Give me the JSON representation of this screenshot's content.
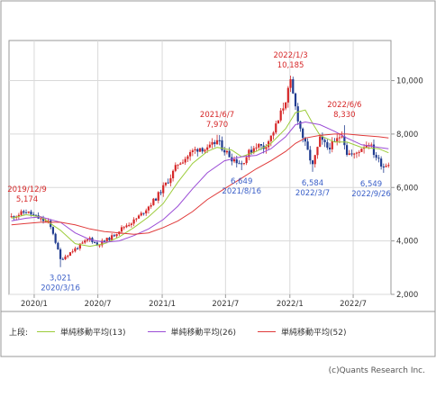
{
  "chart_data": {
    "type": "candlestick",
    "x_ticks": [
      "2020/1",
      "2020/7",
      "2021/1",
      "2021/7",
      "2022/1",
      "2022/7"
    ],
    "y_ticks": [
      "2,000",
      "4,000",
      "6,000",
      "8,000",
      "10,000"
    ],
    "ylim": [
      2000,
      11500
    ],
    "grid": true,
    "colors": {
      "up": "#d62728",
      "down": "#1f3b8f",
      "annotation_high": "#d62728",
      "annotation_low": "#3a5fc8"
    },
    "annotations": [
      {
        "date": "2019/12/9",
        "value": 5174,
        "date_label": "2019/12/9",
        "value_label": "5,174",
        "kind": "high"
      },
      {
        "date": "2020/3/16",
        "value": 3021,
        "date_label": "2020/3/16",
        "value_label": "3,021",
        "kind": "low"
      },
      {
        "date": "2021/6/7",
        "value": 7970,
        "date_label": "2021/6/7",
        "value_label": "7,970",
        "kind": "high"
      },
      {
        "date": "2021/8/16",
        "value": 6649,
        "date_label": "2021/8/16",
        "value_label": "6,649",
        "kind": "low"
      },
      {
        "date": "2022/1/3",
        "value": 10185,
        "date_label": "2022/1/3",
        "value_label": "10,185",
        "kind": "high"
      },
      {
        "date": "2022/3/7",
        "value": 6584,
        "date_label": "2022/3/7",
        "value_label": "6,584",
        "kind": "low"
      },
      {
        "date": "2022/6/6",
        "value": 8330,
        "date_label": "2022/6/6",
        "value_label": "8,330",
        "kind": "high"
      },
      {
        "date": "2022/9/26",
        "value": 6549,
        "date_label": "2022/9/26",
        "value_label": "6,549",
        "kind": "low"
      }
    ],
    "close_path": [
      [
        "2019/10/28",
        4900
      ],
      [
        "2019/11/18",
        5000
      ],
      [
        "2019/12/9",
        5100
      ],
      [
        "2019/12/30",
        4950
      ],
      [
        "2020/1/20",
        4800
      ],
      [
        "2020/2/10",
        4700
      ],
      [
        "2020/2/24",
        4300
      ],
      [
        "2020/3/16",
        3300
      ],
      [
        "2020/4/6",
        3500
      ],
      [
        "2020/4/27",
        3700
      ],
      [
        "2020/5/18",
        3900
      ],
      [
        "2020/6/8",
        4100
      ],
      [
        "2020/6/29",
        3850
      ],
      [
        "2020/7/20",
        4000
      ],
      [
        "2020/8/10",
        4150
      ],
      [
        "2020/8/31",
        4400
      ],
      [
        "2020/9/21",
        4600
      ],
      [
        "2020/10/12",
        4750
      ],
      [
        "2020/11/2",
        5000
      ],
      [
        "2020/11/23",
        5300
      ],
      [
        "2020/12/14",
        5600
      ],
      [
        "2021/1/4",
        6000
      ],
      [
        "2021/1/25",
        6400
      ],
      [
        "2021/2/15",
        6900
      ],
      [
        "2021/3/8",
        7100
      ],
      [
        "2021/3/29",
        7350
      ],
      [
        "2021/4/19",
        7500
      ],
      [
        "2021/5/10",
        7400
      ],
      [
        "2021/6/7",
        7750
      ],
      [
        "2021/6/28",
        7400
      ],
      [
        "2021/7/19",
        7100
      ],
      [
        "2021/8/16",
        6900
      ],
      [
        "2021/9/6",
        7300
      ],
      [
        "2021/9/27",
        7600
      ],
      [
        "2021/10/18",
        7500
      ],
      [
        "2021/11/8",
        7900
      ],
      [
        "2021/11/29",
        8500
      ],
      [
        "2021/12/20",
        9300
      ],
      [
        "2022/1/3",
        9900
      ],
      [
        "2022/1/17",
        9000
      ],
      [
        "2022/1/31",
        8200
      ],
      [
        "2022/2/14",
        7600
      ],
      [
        "2022/3/7",
        6800
      ],
      [
        "2022/3/28",
        7800
      ],
      [
        "2022/4/18",
        7500
      ],
      [
        "2022/5/9",
        7650
      ],
      [
        "2022/5/30",
        8050
      ],
      [
        "2022/6/13",
        7300
      ],
      [
        "2022/7/4",
        7200
      ],
      [
        "2022/7/25",
        7500
      ],
      [
        "2022/8/15",
        7700
      ],
      [
        "2022/8/29",
        7300
      ],
      [
        "2022/9/12",
        7000
      ],
      [
        "2022/9/26",
        6800
      ],
      [
        "2022/10/10",
        6950
      ]
    ],
    "series": [
      {
        "name": "単純移動平均(13)",
        "color": "#9ccc3a",
        "points": [
          [
            "2019/10/28",
            4850
          ],
          [
            "2019/12/9",
            4980
          ],
          [
            "2020/1/20",
            4900
          ],
          [
            "2020/3/16",
            4400
          ],
          [
            "2020/4/27",
            3900
          ],
          [
            "2020/6/8",
            3800
          ],
          [
            "2020/7/20",
            3900
          ],
          [
            "2020/8/31",
            4150
          ],
          [
            "2020/10/12",
            4500
          ],
          [
            "2020/11/23",
            4900
          ],
          [
            "2021/1/4",
            5400
          ],
          [
            "2021/2/15",
            6200
          ],
          [
            "2021/3/29",
            6900
          ],
          [
            "2021/5/10",
            7350
          ],
          [
            "2021/6/7",
            7500
          ],
          [
            "2021/7/19",
            7400
          ],
          [
            "2021/8/16",
            7150
          ],
          [
            "2021/9/27",
            7350
          ],
          [
            "2021/11/8",
            7650
          ],
          [
            "2021/12/20",
            8200
          ],
          [
            "2022/1/17",
            8800
          ],
          [
            "2022/2/14",
            8900
          ],
          [
            "2022/3/7",
            8400
          ],
          [
            "2022/3/28",
            7950
          ],
          [
            "2022/5/9",
            7700
          ],
          [
            "2022/6/13",
            7700
          ],
          [
            "2022/7/25",
            7500
          ],
          [
            "2022/9/12",
            7450
          ],
          [
            "2022/10/10",
            7300
          ]
        ]
      },
      {
        "name": "単純移動平均(26)",
        "color": "#9b4dd6",
        "points": [
          [
            "2019/10/28",
            4750
          ],
          [
            "2019/12/9",
            4850
          ],
          [
            "2020/1/20",
            4900
          ],
          [
            "2020/3/16",
            4700
          ],
          [
            "2020/4/27",
            4300
          ],
          [
            "2020/6/8",
            4050
          ],
          [
            "2020/7/20",
            3950
          ],
          [
            "2020/8/31",
            4000
          ],
          [
            "2020/10/12",
            4200
          ],
          [
            "2020/11/23",
            4450
          ],
          [
            "2021/1/4",
            4800
          ],
          [
            "2021/2/15",
            5300
          ],
          [
            "2021/3/29",
            5950
          ],
          [
            "2021/5/10",
            6550
          ],
          [
            "2021/6/28",
            7000
          ],
          [
            "2021/8/16",
            7150
          ],
          [
            "2021/9/27",
            7200
          ],
          [
            "2021/11/8",
            7450
          ],
          [
            "2021/12/20",
            7900
          ],
          [
            "2022/1/17",
            8350
          ],
          [
            "2022/2/14",
            8450
          ],
          [
            "2022/3/28",
            8350
          ],
          [
            "2022/5/9",
            8100
          ],
          [
            "2022/6/13",
            7850
          ],
          [
            "2022/7/25",
            7600
          ],
          [
            "2022/9/12",
            7500
          ],
          [
            "2022/10/10",
            7450
          ]
        ]
      },
      {
        "name": "単純移動平均(52)",
        "color": "#e03a3a",
        "points": [
          [
            "2019/10/28",
            4600
          ],
          [
            "2019/12/9",
            4650
          ],
          [
            "2020/1/20",
            4700
          ],
          [
            "2020/3/16",
            4700
          ],
          [
            "2020/4/27",
            4600
          ],
          [
            "2020/6/8",
            4450
          ],
          [
            "2020/7/20",
            4350
          ],
          [
            "2020/8/31",
            4300
          ],
          [
            "2020/10/12",
            4250
          ],
          [
            "2020/11/23",
            4300
          ],
          [
            "2021/1/4",
            4500
          ],
          [
            "2021/2/15",
            4750
          ],
          [
            "2021/3/29",
            5100
          ],
          [
            "2021/5/10",
            5550
          ],
          [
            "2021/6/28",
            5950
          ],
          [
            "2021/8/16",
            6350
          ],
          [
            "2021/9/27",
            6700
          ],
          [
            "2021/11/8",
            7000
          ],
          [
            "2021/12/20",
            7350
          ],
          [
            "2022/1/17",
            7650
          ],
          [
            "2022/2/14",
            7850
          ],
          [
            "2022/3/28",
            7950
          ],
          [
            "2022/5/9",
            8000
          ],
          [
            "2022/6/13",
            8000
          ],
          [
            "2022/7/25",
            7950
          ],
          [
            "2022/9/12",
            7900
          ],
          [
            "2022/10/10",
            7850
          ]
        ]
      }
    ]
  },
  "legend": {
    "prefix": "上段:",
    "items": [
      {
        "label": "単純移動平均(13)",
        "color": "#9ccc3a"
      },
      {
        "label": "単純移動平均(26)",
        "color": "#9b4dd6"
      },
      {
        "label": "単純移動平均(52)",
        "color": "#e03a3a"
      }
    ]
  },
  "credit": "(c)Quants Research Inc."
}
